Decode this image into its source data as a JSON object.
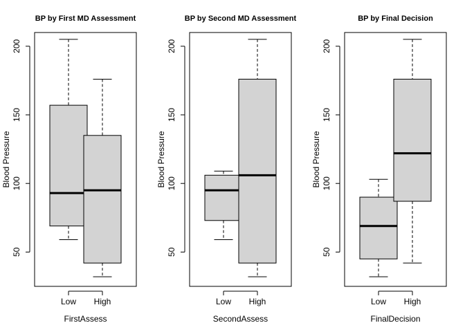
{
  "chart_data": [
    {
      "type": "boxplot",
      "title": "BP by First MD Assessment",
      "xlabel": "FirstAssess",
      "ylabel": "Blood Pressure",
      "ylim": [
        25,
        210
      ],
      "yticks": [
        50,
        100,
        150,
        200
      ],
      "grid": false,
      "categories": [
        "Low",
        "High"
      ],
      "boxes": [
        {
          "category": "Low",
          "min": 59,
          "q1": 69,
          "median": 93,
          "q3": 157,
          "max": 205
        },
        {
          "category": "High",
          "min": 32,
          "q1": 42,
          "median": 95,
          "q3": 135,
          "max": 176
        }
      ]
    },
    {
      "type": "boxplot",
      "title": "BP by Second MD Assessment",
      "xlabel": "SecondAssess",
      "ylabel": "Blood Pressure",
      "ylim": [
        25,
        210
      ],
      "yticks": [
        50,
        100,
        150,
        200
      ],
      "grid": false,
      "categories": [
        "Low",
        "High"
      ],
      "boxes": [
        {
          "category": "Low",
          "min": 59,
          "q1": 73,
          "median": 95,
          "q3": 106,
          "max": 109
        },
        {
          "category": "High",
          "min": 32,
          "q1": 42,
          "median": 106,
          "q3": 176,
          "max": 205
        }
      ]
    },
    {
      "type": "boxplot",
      "title": "BP by Final Decision",
      "xlabel": "FinalDecision",
      "ylabel": "Blood Pressure",
      "ylim": [
        25,
        210
      ],
      "yticks": [
        50,
        100,
        150,
        200
      ],
      "grid": false,
      "categories": [
        "Low",
        "High"
      ],
      "boxes": [
        {
          "category": "Low",
          "min": 32,
          "q1": 45,
          "median": 69,
          "q3": 90,
          "max": 103
        },
        {
          "category": "High",
          "min": 42,
          "q1": 87,
          "median": 122,
          "q3": 176,
          "max": 205
        }
      ]
    }
  ],
  "style": {
    "box_fill": "#d3d3d3",
    "stroke": "#000000",
    "background": "#ffffff"
  }
}
